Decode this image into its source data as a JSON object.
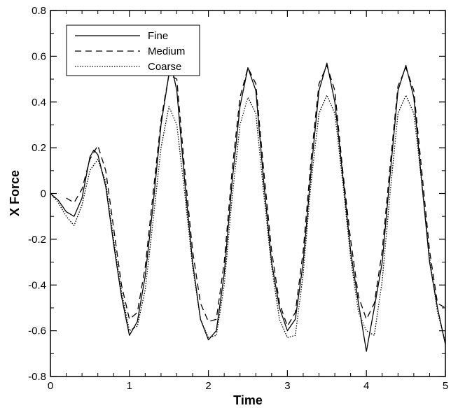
{
  "chart_data": {
    "type": "line",
    "title": "",
    "xlabel": "Time",
    "ylabel": "X Force",
    "xlim": [
      0,
      5
    ],
    "ylim": [
      -0.8,
      0.8
    ],
    "x_ticks": [
      "0",
      "1",
      "2",
      "3",
      "4",
      "5"
    ],
    "y_ticks": [
      "-0.8",
      "-0.6",
      "-0.4",
      "-0.2",
      "0",
      "0.2",
      "0.4",
      "0.6",
      "0.8"
    ],
    "grid": false,
    "legend_position": "top-left",
    "series": [
      {
        "name": "Fine",
        "style": "solid",
        "color": "#000000",
        "x": [
          0,
          0.1,
          0.2,
          0.3,
          0.4,
          0.5,
          0.55,
          0.6,
          0.7,
          0.8,
          0.9,
          1.0,
          1.1,
          1.2,
          1.3,
          1.4,
          1.5,
          1.55,
          1.6,
          1.7,
          1.8,
          1.9,
          2.0,
          2.1,
          2.2,
          2.3,
          2.4,
          2.5,
          2.6,
          2.7,
          2.8,
          2.9,
          3.0,
          3.1,
          3.2,
          3.3,
          3.4,
          3.5,
          3.6,
          3.7,
          3.8,
          3.9,
          4.0,
          4.1,
          4.2,
          4.3,
          4.4,
          4.5,
          4.6,
          4.7,
          4.8,
          4.9,
          5.0
        ],
        "y": [
          0,
          -0.03,
          -0.08,
          -0.1,
          -0.02,
          0.16,
          0.19,
          0.17,
          0.03,
          -0.22,
          -0.45,
          -0.62,
          -0.56,
          -0.36,
          -0.05,
          0.3,
          0.52,
          0.53,
          0.45,
          0.05,
          -0.3,
          -0.55,
          -0.64,
          -0.6,
          -0.35,
          0.05,
          0.38,
          0.55,
          0.45,
          0.05,
          -0.3,
          -0.5,
          -0.6,
          -0.55,
          -0.3,
          0.1,
          0.45,
          0.57,
          0.4,
          0.08,
          -0.25,
          -0.48,
          -0.69,
          -0.5,
          -0.3,
          0.08,
          0.45,
          0.56,
          0.42,
          0.05,
          -0.3,
          -0.5,
          -0.66
        ]
      },
      {
        "name": "Medium",
        "style": "dashed",
        "color": "#000000",
        "x": [
          0.2,
          0.3,
          0.4,
          0.5,
          0.6,
          0.7,
          0.8,
          0.9,
          1.0,
          1.1,
          1.2,
          1.3,
          1.4,
          1.5,
          1.6,
          1.7,
          1.8,
          1.9,
          2.0,
          2.1,
          2.2,
          2.3,
          2.4,
          2.5,
          2.6,
          2.7,
          2.8,
          2.9,
          3.0,
          3.1,
          3.2,
          3.3,
          3.4,
          3.5,
          3.6,
          3.7,
          3.8,
          3.9,
          4.0,
          4.1,
          4.2,
          4.3,
          4.4,
          4.5,
          4.6,
          4.7,
          4.8,
          4.9,
          5.0
        ],
        "y": [
          -0.02,
          -0.04,
          0.02,
          0.15,
          0.21,
          0.1,
          -0.15,
          -0.4,
          -0.55,
          -0.52,
          -0.32,
          0.0,
          0.32,
          0.52,
          0.5,
          0.1,
          -0.25,
          -0.48,
          -0.56,
          -0.55,
          -0.3,
          0.1,
          0.42,
          0.55,
          0.48,
          0.1,
          -0.25,
          -0.48,
          -0.58,
          -0.52,
          -0.25,
          0.15,
          0.48,
          0.56,
          0.45,
          0.1,
          -0.2,
          -0.45,
          -0.55,
          -0.48,
          -0.25,
          0.12,
          0.47,
          0.55,
          0.45,
          0.1,
          -0.25,
          -0.48,
          -0.5
        ]
      },
      {
        "name": "Coarse",
        "style": "dotted",
        "color": "#000000",
        "x": [
          0,
          0.1,
          0.2,
          0.3,
          0.4,
          0.5,
          0.6,
          0.7,
          0.8,
          0.9,
          1.0,
          1.1,
          1.2,
          1.3,
          1.4,
          1.5,
          1.6,
          1.7,
          1.8,
          1.9,
          2.0,
          2.1,
          2.2,
          2.3,
          2.4,
          2.5,
          2.6,
          2.7,
          2.8,
          2.9,
          3.0,
          3.1,
          3.2,
          3.3,
          3.4,
          3.5,
          3.6,
          3.7,
          3.8,
          3.9,
          4.0,
          4.1,
          4.2,
          4.3,
          4.4,
          4.5,
          4.6,
          4.7,
          4.8,
          4.9,
          5.0
        ],
        "y": [
          0,
          -0.04,
          -0.1,
          -0.14,
          -0.05,
          0.1,
          0.15,
          0.05,
          -0.2,
          -0.43,
          -0.6,
          -0.58,
          -0.42,
          -0.12,
          0.2,
          0.38,
          0.3,
          0.0,
          -0.32,
          -0.55,
          -0.63,
          -0.62,
          -0.4,
          -0.02,
          0.3,
          0.42,
          0.35,
          0.0,
          -0.32,
          -0.55,
          -0.63,
          -0.62,
          -0.35,
          0.05,
          0.35,
          0.43,
          0.35,
          0.05,
          -0.28,
          -0.52,
          -0.6,
          -0.62,
          -0.38,
          0.0,
          0.35,
          0.43,
          0.35,
          0.05,
          -0.28,
          -0.52,
          -0.65
        ]
      }
    ]
  }
}
